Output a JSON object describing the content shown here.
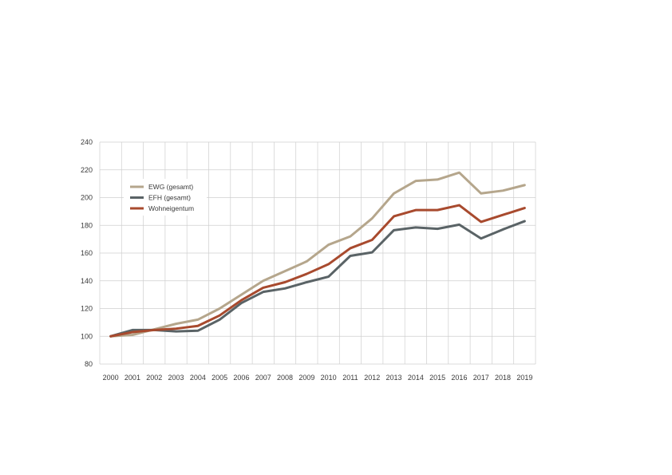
{
  "chart_data": {
    "type": "line",
    "x": [
      "2000",
      "2001",
      "2002",
      "2003",
      "2004",
      "2005",
      "2006",
      "2007",
      "2008",
      "2009",
      "2010",
      "2011",
      "2012",
      "2013",
      "2014",
      "2015",
      "2016",
      "2017",
      "2018",
      "2019"
    ],
    "ylim": [
      80,
      240
    ],
    "yticks": [
      "80",
      "100",
      "120",
      "140",
      "160",
      "180",
      "200",
      "220",
      "240"
    ],
    "grid": true,
    "legend_position": "top-left",
    "series": [
      {
        "name": "EWG (gesamt)",
        "color": "#b5a68c",
        "values": [
          100,
          101,
          105,
          109,
          112,
          120,
          130,
          140,
          147,
          154,
          166,
          172,
          185,
          203,
          212,
          213,
          218,
          203,
          205,
          209
        ]
      },
      {
        "name": "EFH (gesamt)",
        "color": "#5a6366",
        "values": [
          100,
          104.5,
          104.5,
          103.5,
          104,
          112,
          124,
          132,
          134.5,
          139,
          143,
          158,
          160.5,
          176.5,
          178.5,
          177.5,
          180.5,
          170.5,
          177,
          183
        ]
      },
      {
        "name": "Wohneigentum",
        "color": "#a84a2e",
        "values": [
          100,
          103,
          104.5,
          105.5,
          107.5,
          115,
          126,
          135,
          139,
          145,
          152,
          163.5,
          169.5,
          186.5,
          191,
          191,
          194.5,
          182.5,
          187.5,
          192.5
        ]
      }
    ]
  }
}
